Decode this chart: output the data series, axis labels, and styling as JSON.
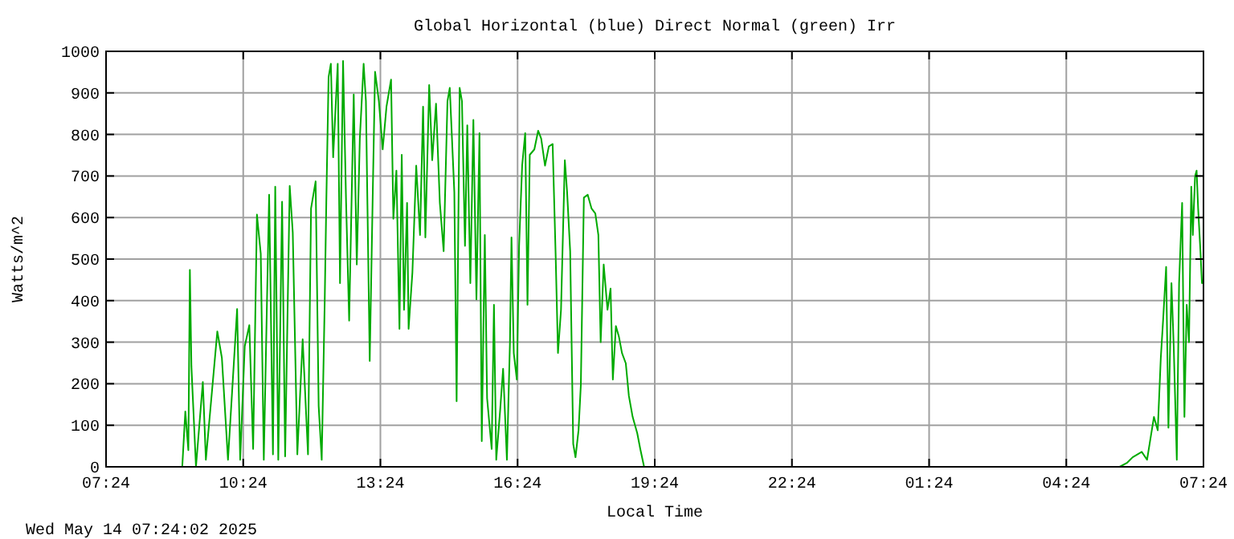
{
  "chart_data": {
    "type": "line",
    "title": "Global Horizontal (blue) Direct Normal (green) Irr",
    "xlabel": "Local Time",
    "ylabel": "Watts/m^2",
    "annotations": [
      "Wed May 14 07:24:02 2025"
    ],
    "xlim": [
      "2025-05-13T07:24",
      "2025-05-14T07:24"
    ],
    "xticks": [
      {
        "value": "2025-05-13T07:24",
        "label": "07:24"
      },
      {
        "value": "2025-05-13T10:24",
        "label": "10:24"
      },
      {
        "value": "2025-05-13T13:24",
        "label": "13:24"
      },
      {
        "value": "2025-05-13T16:24",
        "label": "16:24"
      },
      {
        "value": "2025-05-13T19:24",
        "label": "19:24"
      },
      {
        "value": "2025-05-13T22:24",
        "label": "22:24"
      },
      {
        "value": "2025-05-14T01:24",
        "label": "01:24"
      },
      {
        "value": "2025-05-14T04:24",
        "label": "04:24"
      },
      {
        "value": "2025-05-14T07:24",
        "label": "07:24"
      }
    ],
    "ylim": [
      0,
      1000
    ],
    "yticks": [
      0,
      100,
      200,
      300,
      400,
      500,
      600,
      700,
      800,
      900,
      1000
    ],
    "grid": true,
    "marker": "none",
    "line_style": "solid",
    "series": [
      {
        "color": "#00aa00",
        "x": [
          "2025-05-13T09:04",
          "2025-05-13T09:08",
          "2025-05-13T09:12",
          "2025-05-13T09:14",
          "2025-05-13T09:16",
          "2025-05-13T09:22",
          "2025-05-13T09:31",
          "2025-05-13T09:35",
          "2025-05-13T09:50",
          "2025-05-13T09:56",
          "2025-05-13T10:04",
          "2025-05-13T10:16",
          "2025-05-13T10:20",
          "2025-05-13T10:26",
          "2025-05-13T10:32",
          "2025-05-13T10:37",
          "2025-05-13T10:42",
          "2025-05-13T10:47",
          "2025-05-13T10:51",
          "2025-05-13T10:58",
          "2025-05-13T11:03",
          "2025-05-13T11:06",
          "2025-05-13T11:10",
          "2025-05-13T11:15",
          "2025-05-13T11:19",
          "2025-05-13T11:25",
          "2025-05-13T11:29",
          "2025-05-13T11:35",
          "2025-05-13T11:42",
          "2025-05-13T11:49",
          "2025-05-13T11:53",
          "2025-05-13T11:59",
          "2025-05-13T12:03",
          "2025-05-13T12:07",
          "2025-05-13T12:11",
          "2025-05-13T12:13",
          "2025-05-13T12:16",
          "2025-05-13T12:19",
          "2025-05-13T12:22",
          "2025-05-13T12:28",
          "2025-05-13T12:31",
          "2025-05-13T12:35",
          "2025-05-13T12:39",
          "2025-05-13T12:43",
          "2025-05-13T12:49",
          "2025-05-13T12:53",
          "2025-05-13T12:57",
          "2025-05-13T13:02",
          "2025-05-13T13:05",
          "2025-05-13T13:10",
          "2025-05-13T13:14",
          "2025-05-13T13:17",
          "2025-05-13T13:22",
          "2025-05-13T13:27",
          "2025-05-13T13:32",
          "2025-05-13T13:38",
          "2025-05-13T13:41",
          "2025-05-13T13:45",
          "2025-05-13T13:49",
          "2025-05-13T13:52",
          "2025-05-13T13:55",
          "2025-05-13T13:59",
          "2025-05-13T14:01",
          "2025-05-13T14:06",
          "2025-05-13T14:11",
          "2025-05-13T14:16",
          "2025-05-13T14:20",
          "2025-05-13T14:23",
          "2025-05-13T14:28",
          "2025-05-13T14:32",
          "2025-05-13T14:37",
          "2025-05-13T14:42",
          "2025-05-13T14:47",
          "2025-05-13T14:52",
          "2025-05-13T14:55",
          "2025-05-13T15:01",
          "2025-05-13T15:04",
          "2025-05-13T15:08",
          "2025-05-13T15:11",
          "2025-05-13T15:15",
          "2025-05-13T15:18",
          "2025-05-13T15:22",
          "2025-05-13T15:26",
          "2025-05-13T15:30",
          "2025-05-13T15:34",
          "2025-05-13T15:37",
          "2025-05-13T15:41",
          "2025-05-13T15:44",
          "2025-05-13T15:50",
          "2025-05-13T15:53",
          "2025-05-13T15:56",
          "2025-05-13T16:01",
          "2025-05-13T16:05",
          "2025-05-13T16:10",
          "2025-05-13T16:14",
          "2025-05-13T16:16",
          "2025-05-13T16:19",
          "2025-05-13T16:23",
          "2025-05-13T16:26",
          "2025-05-13T16:30",
          "2025-05-13T16:34",
          "2025-05-13T16:37",
          "2025-05-13T16:40",
          "2025-05-13T16:46",
          "2025-05-13T16:51",
          "2025-05-13T16:55",
          "2025-05-13T17:00",
          "2025-05-13T17:05",
          "2025-05-13T17:10",
          "2025-05-13T17:14",
          "2025-05-13T17:17",
          "2025-05-13T17:21",
          "2025-05-13T17:26",
          "2025-05-13T17:29",
          "2025-05-13T17:33",
          "2025-05-13T17:37",
          "2025-05-13T17:40",
          "2025-05-13T17:44",
          "2025-05-13T17:47",
          "2025-05-13T17:51",
          "2025-05-13T17:56",
          "2025-05-13T18:01",
          "2025-05-13T18:06",
          "2025-05-13T18:10",
          "2025-05-13T18:13",
          "2025-05-13T18:17",
          "2025-05-13T18:22",
          "2025-05-13T18:26",
          "2025-05-13T18:29",
          "2025-05-13T18:33",
          "2025-05-13T18:37",
          "2025-05-13T18:41",
          "2025-05-13T18:46",
          "2025-05-13T18:50",
          "2025-05-13T18:55",
          "2025-05-13T19:01",
          "2025-05-13T19:05",
          "2025-05-13T19:10",
          "2025-05-14T05:34",
          "2025-05-14T05:44",
          "2025-05-14T05:51",
          "2025-05-14T06:03",
          "2025-05-14T06:10",
          "2025-05-14T06:19",
          "2025-05-14T06:24",
          "2025-05-14T06:28",
          "2025-05-14T06:31",
          "2025-05-14T06:35",
          "2025-05-14T06:38",
          "2025-05-14T06:42",
          "2025-05-14T06:45",
          "2025-05-14T06:49",
          "2025-05-14T06:52",
          "2025-05-14T06:56",
          "2025-05-14T06:59",
          "2025-05-14T07:02",
          "2025-05-14T07:05",
          "2025-05-14T07:08",
          "2025-05-14T07:10",
          "2025-05-14T07:13",
          "2025-05-14T07:15",
          "2025-05-14T07:17",
          "2025-05-14T07:20",
          "2025-05-14T07:22",
          "2025-05-14T07:24"
        ],
        "values": [
          0,
          133,
          40,
          474,
          242,
          0,
          204,
          17,
          326,
          262,
          17,
          380,
          17,
          290,
          341,
          43,
          607,
          513,
          17,
          655,
          30,
          674,
          17,
          638,
          25,
          676,
          564,
          30,
          307,
          30,
          622,
          687,
          146,
          17,
          406,
          635,
          938,
          970,
          745,
          970,
          442,
          977,
          635,
          352,
          896,
          487,
          790,
          970,
          880,
          255,
          661,
          951,
          880,
          764,
          867,
          932,
          597,
          713,
          332,
          751,
          378,
          635,
          332,
          468,
          725,
          558,
          867,
          552,
          919,
          738,
          874,
          635,
          519,
          880,
          912,
          661,
          158,
          912,
          880,
          532,
          822,
          442,
          835,
          403,
          803,
          62,
          558,
          165,
          43,
          390,
          17,
          133,
          236,
          17,
          300,
          552,
          274,
          210,
          532,
          725,
          803,
          390,
          751,
          764,
          809,
          790,
          725,
          771,
          777,
          506,
          274,
          378,
          738,
          661,
          519,
          55,
          23,
          88,
          197,
          648,
          655,
          622,
          610,
          558,
          300,
          487,
          378,
          429,
          210,
          339,
          313,
          274,
          249,
          171,
          120,
          81,
          43,
          0,
          0,
          10,
          23,
          36,
          17,
          120,
          88,
          262,
          352,
          481,
          94,
          442,
          287,
          17,
          442,
          635,
          120,
          390,
          300,
          674,
          558,
          700,
          713,
          622,
          519,
          442,
          450
        ]
      }
    ]
  }
}
